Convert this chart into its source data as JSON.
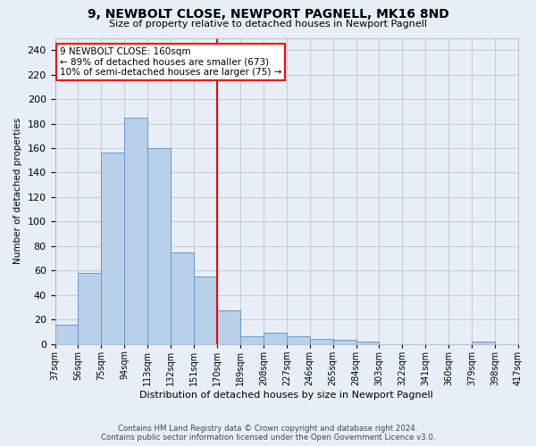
{
  "title": "9, NEWBOLT CLOSE, NEWPORT PAGNELL, MK16 8ND",
  "subtitle": "Size of property relative to detached houses in Newport Pagnell",
  "xlabel": "Distribution of detached houses by size in Newport Pagnell",
  "ylabel": "Number of detached properties",
  "bar_values": [
    16,
    58,
    156,
    185,
    160,
    75,
    55,
    27,
    6,
    9,
    6,
    4,
    3,
    2,
    0,
    0,
    0,
    0,
    2,
    0
  ],
  "bar_labels": [
    "37sqm",
    "56sqm",
    "75sqm",
    "94sqm",
    "113sqm",
    "132sqm",
    "151sqm",
    "170sqm",
    "189sqm",
    "208sqm",
    "227sqm",
    "246sqm",
    "265sqm",
    "284sqm",
    "303sqm",
    "322sqm",
    "341sqm",
    "360sqm",
    "379sqm",
    "398sqm",
    "417sqm"
  ],
  "bar_color": "#b8d0ea",
  "bar_edge_color": "#6699cc",
  "vline_x": 7.0,
  "vline_color": "red",
  "annotation_text": "9 NEWBOLT CLOSE: 160sqm\n← 89% of detached houses are smaller (673)\n10% of semi-detached houses are larger (75) →",
  "annotation_box_color": "white",
  "annotation_box_edge_color": "red",
  "ylim": [
    0,
    250
  ],
  "yticks": [
    0,
    20,
    40,
    60,
    80,
    100,
    120,
    140,
    160,
    180,
    200,
    220,
    240
  ],
  "grid_color": "#cccccc",
  "background_color": "#e8eef8",
  "footer_line1": "Contains HM Land Registry data © Crown copyright and database right 2024.",
  "footer_line2": "Contains public sector information licensed under the Open Government Licence v3.0.",
  "title_fontsize": 10,
  "subtitle_fontsize": 8,
  "tick_fontsize": 7
}
